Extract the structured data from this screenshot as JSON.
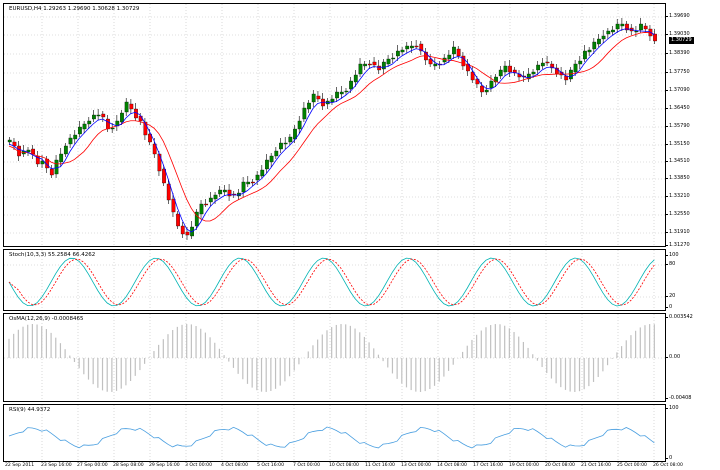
{
  "price_panel": {
    "label": "EURUSD,H4  1.29263 1.29690 1.30628 1.30729",
    "current_price": "1.30729",
    "axis_ticks": [
      "1.39690",
      "1.39030",
      "1.38390",
      "1.37750",
      "1.37090",
      "1.36450",
      "1.35790",
      "1.35150",
      "1.34510",
      "1.33850",
      "1.33210",
      "1.32550",
      "1.31910",
      "1.31270"
    ]
  },
  "stoch_panel": {
    "label": "Stoch(10,3,3) 55.2584 66.4262",
    "axis_ticks": [
      "100",
      "80",
      "20",
      "0"
    ]
  },
  "osma_panel": {
    "label": "OsMA(12,26,9) -0.0008465",
    "axis_ticks": [
      "0.003542",
      "0.00",
      "-0.00408"
    ]
  },
  "rsi_panel": {
    "label": "RSI(9) 44.9372",
    "axis_ticks": [
      "100",
      "0"
    ]
  },
  "time_axis": [
    "22 Sep 2011",
    "23 Sep 16:00",
    "27 Sep 00:00",
    "28 Sep 08:00",
    "29 Sep 16:00",
    "3 Oct 00:00",
    "4 Oct 08:00",
    "5 Oct 16:00",
    "7 Oct 00:00",
    "10 Oct 08:00",
    "11 Oct 16:00",
    "13 Oct 00:00",
    "14 Oct 08:00",
    "17 Oct 16:00",
    "19 Oct 00:00",
    "20 Oct 08:00",
    "21 Oct 16:00",
    "25 Oct 00:00",
    "26 Oct 08:00"
  ],
  "colors": {
    "bull": "#008000",
    "bear": "#ff0000",
    "ma_fast": "#0000ff",
    "ma_slow": "#ff0000",
    "stoch_main": "#00b3b3",
    "stoch_signal": "#ff0000",
    "osma": "#c0c0c0",
    "rsi": "#4a9fe0",
    "grid": "#c0c0c0"
  }
}
